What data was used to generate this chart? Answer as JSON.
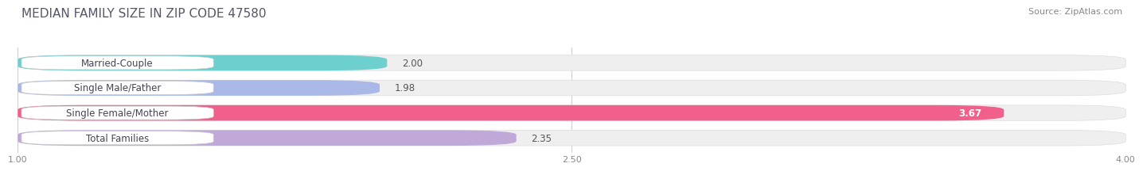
{
  "title": "MEDIAN FAMILY SIZE IN ZIP CODE 47580",
  "source": "Source: ZipAtlas.com",
  "categories": [
    "Married-Couple",
    "Single Male/Father",
    "Single Female/Mother",
    "Total Families"
  ],
  "values": [
    2.0,
    1.98,
    3.67,
    2.35
  ],
  "bar_colors": [
    "#6ecfcf",
    "#aab8e8",
    "#f0608a",
    "#c0a8d8"
  ],
  "xlim": [
    1.0,
    4.0
  ],
  "xticks": [
    1.0,
    2.5,
    4.0
  ],
  "xtick_labels": [
    "1.00",
    "2.50",
    "4.00"
  ],
  "bar_height": 0.62,
  "label_fontsize": 8.5,
  "value_fontsize": 8.5,
  "title_fontsize": 11,
  "source_fontsize": 8,
  "background_color": "#ffffff",
  "bar_bg_color": "#efefef",
  "label_box_color": "#ffffff"
}
